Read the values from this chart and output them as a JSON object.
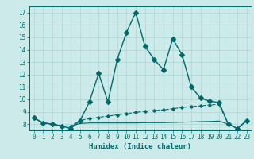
{
  "title": "",
  "xlabel": "Humidex (Indice chaleur)",
  "bg_color": "#cdeaea",
  "grid_color": "#add5d5",
  "line_color": "#006868",
  "x_values": [
    0,
    1,
    2,
    3,
    4,
    5,
    6,
    7,
    8,
    9,
    10,
    11,
    12,
    13,
    14,
    15,
    16,
    17,
    18,
    19,
    20,
    21,
    22,
    23
  ],
  "line1": [
    8.5,
    8.1,
    8.0,
    7.85,
    7.65,
    8.3,
    9.8,
    12.1,
    9.8,
    13.2,
    15.4,
    17.0,
    14.3,
    13.2,
    12.4,
    14.9,
    13.6,
    11.0,
    10.1,
    9.85,
    9.75,
    8.0,
    7.65,
    8.3
  ],
  "line2": [
    8.5,
    8.1,
    8.0,
    7.85,
    7.85,
    8.3,
    8.45,
    8.55,
    8.65,
    8.75,
    8.85,
    8.95,
    9.05,
    9.1,
    9.15,
    9.25,
    9.35,
    9.42,
    9.48,
    9.55,
    9.6,
    8.0,
    7.65,
    8.3
  ],
  "line3": [
    8.5,
    8.1,
    8.0,
    7.85,
    7.85,
    8.05,
    8.1,
    8.1,
    8.1,
    8.1,
    8.1,
    8.1,
    8.12,
    8.12,
    8.12,
    8.14,
    8.16,
    8.18,
    8.2,
    8.22,
    8.25,
    8.0,
    7.65,
    8.3
  ],
  "ylim": [
    7.5,
    17.5
  ],
  "xlim": [
    -0.5,
    23.5
  ],
  "yticks": [
    8,
    9,
    10,
    11,
    12,
    13,
    14,
    15,
    16,
    17
  ],
  "xticks": [
    0,
    1,
    2,
    3,
    4,
    5,
    6,
    7,
    8,
    9,
    10,
    11,
    12,
    13,
    14,
    15,
    16,
    17,
    18,
    19,
    20,
    21,
    22,
    23
  ],
  "tick_fontsize": 5.5,
  "xlabel_fontsize": 6.5
}
